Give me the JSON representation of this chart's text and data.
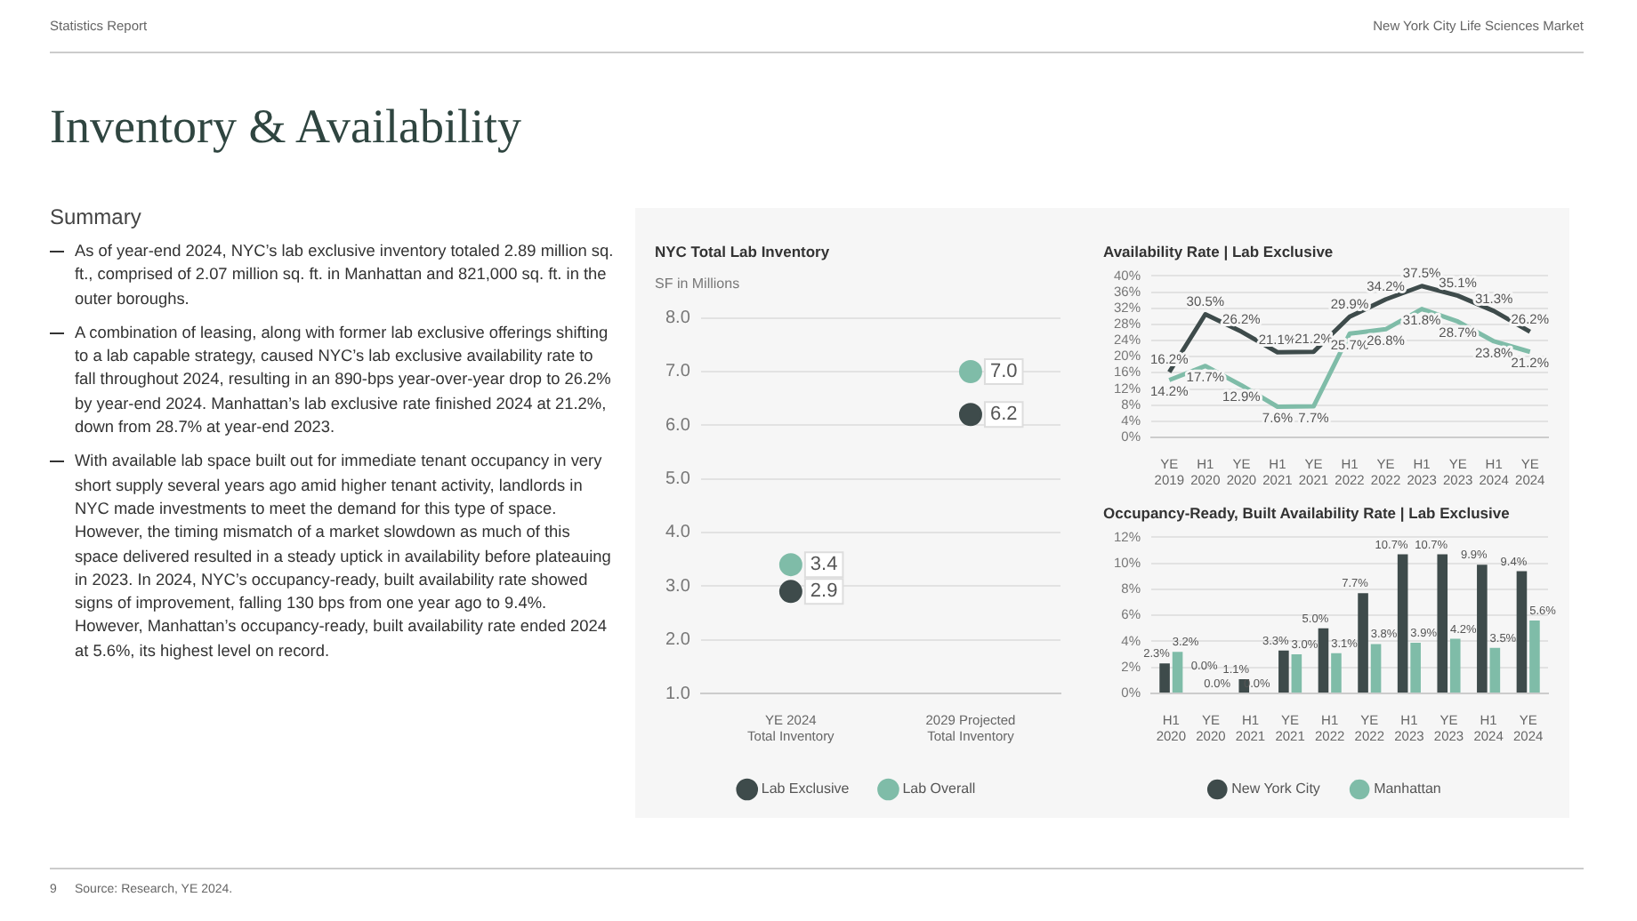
{
  "chart_data": [
    {
      "type": "other",
      "title": "Inventory & Availability",
      "subtitle": "Summary",
      "annotations": [
        "Statistics Report",
        "New York City Life Sciences Market",
        "As of year-end 2024, NYC’s lab exclusive inventory totaled 2.89 million sq. ft., comprised of 2.07 million sq. ft. in Manhattan and 821,000 sq. ft. in the outer boroughs.",
        "A combination of leasing, along with former lab exclusive offerings shifting to a lab capable strategy, caused NYC’s lab exclusive availability rate to fall throughout 2024, resulting in an 890-bps year-over-year drop to 26.2% by year-end 2024. Manhattan’s lab exclusive rate finished 2024 at 21.2%, down from 28.7% at year-end 2023.",
        "With available lab space built out for immediate tenant occupancy in very short supply several years ago amid higher tenant activity, landlords in NYC made investments to meet the demand for this type of space. However, the timing mismatch of a market slowdown as much of this space delivered resulted in a steady uptick in availability before plateauing in 2023. In 2024, NYC’s occupancy-ready, built availability rate showed signs of improvement, falling 130 bps from one year ago to 9.4%. However, Manhattan’s occupancy-ready, built availability rate ended 2024 at 5.6%, its highest level on record.",
        "9",
        "Source: Research, YE 2024."
      ]
    },
    {
      "type": "scatter",
      "title": "NYC Total Lab Inventory",
      "subtitle": "SF in Millions",
      "categories": [
        "YE 2024\nTotal Inventory",
        "2029 Projected\nTotal Inventory"
      ],
      "series": [
        {
          "name": "Lab Exclusive",
          "color": "#3e4b4b",
          "values": [
            2.9,
            6.2
          ],
          "value_labels": [
            "2.9",
            "6.2"
          ]
        },
        {
          "name": "Lab Overall",
          "color": "#7fbca8",
          "values": [
            3.4,
            7.0
          ],
          "value_labels": [
            "3.4",
            "7.0"
          ]
        }
      ],
      "ylim": [
        1,
        8
      ],
      "yticks": [
        {
          "value": 1,
          "label": "1.0"
        },
        {
          "value": 2,
          "label": "2.0"
        },
        {
          "value": 3,
          "label": "3.0"
        },
        {
          "value": 4,
          "label": "4.0"
        },
        {
          "value": 5,
          "label": "5.0"
        },
        {
          "value": 6,
          "label": "6.0"
        },
        {
          "value": 7,
          "label": "7.0"
        },
        {
          "value": 8,
          "label": "8.0"
        }
      ],
      "grid": "y",
      "legend": "bottom",
      "marker": "circle"
    },
    {
      "type": "line",
      "title": "Availability Rate | Lab Exclusive",
      "categories": [
        "YE 2019",
        "H1 2020",
        "YE 2020",
        "H1 2021",
        "YE 2021",
        "H1 2022",
        "YE 2022",
        "H1 2023",
        "YE 2023",
        "H1 2024",
        "YE 2024"
      ],
      "series": [
        {
          "color": "#3e4b4b",
          "values": [
            16.2,
            30.5,
            26.2,
            21.1,
            21.2,
            29.9,
            34.2,
            37.5,
            35.1,
            31.3,
            26.2
          ],
          "value_labels": [
            "16.2%",
            "30.5%",
            "26.2%",
            "21.1%",
            "21.2%",
            "29.9%",
            "34.2%",
            "37.5%",
            "35.1%",
            "31.3%",
            "26.2%"
          ]
        },
        {
          "color": "#7fbca8",
          "values": [
            14.2,
            17.7,
            12.9,
            7.6,
            7.7,
            25.7,
            26.8,
            31.8,
            28.7,
            23.8,
            21.2
          ],
          "value_labels": [
            "14.2%",
            "17.7%",
            "12.9%",
            "7.6%",
            "7.7%",
            "25.7%",
            "26.8%",
            "31.8%",
            "28.7%",
            "23.8%",
            "21.2%"
          ]
        }
      ],
      "ylim": [
        0,
        40
      ],
      "yticks": [
        {
          "value": 0,
          "label": "0%"
        },
        {
          "value": 4,
          "label": "4%"
        },
        {
          "value": 8,
          "label": "8%"
        },
        {
          "value": 12,
          "label": "12%"
        },
        {
          "value": 16,
          "label": "16%"
        },
        {
          "value": 20,
          "label": "20%"
        },
        {
          "value": 24,
          "label": "24%"
        },
        {
          "value": 28,
          "label": "28%"
        },
        {
          "value": 32,
          "label": "32%"
        },
        {
          "value": 36,
          "label": "36%"
        },
        {
          "value": 40,
          "label": "40%"
        }
      ],
      "grid": "y",
      "marker": "none",
      "line_style": "solid"
    },
    {
      "type": "bar",
      "title": "Occupancy-Ready, Built Availability Rate | Lab Exclusive",
      "categories": [
        "H1 2020",
        "YE 2020",
        "H1 2021",
        "YE 2021",
        "H1 2022",
        "YE 2022",
        "H1 2023",
        "YE 2023",
        "H1 2024",
        "YE 2024"
      ],
      "series": [
        {
          "name": "New York City",
          "color": "#3e4b4b",
          "values": [
            2.3,
            0.0,
            1.1,
            3.3,
            5.0,
            7.7,
            10.7,
            10.7,
            9.9,
            9.4
          ],
          "value_labels": [
            "2.3%",
            "0.0%",
            "1.1%",
            "3.3%",
            "5.0%",
            "7.7%",
            "10.7%",
            "10.7%",
            "9.9%",
            "9.4%"
          ]
        },
        {
          "name": "Manhattan",
          "color": "#7fbca8",
          "values": [
            3.2,
            0.0,
            0.0,
            3.0,
            3.1,
            3.8,
            3.9,
            4.2,
            3.5,
            5.6
          ],
          "value_labels": [
            "3.2%",
            "0.0%",
            "0.0%",
            "3.0%",
            "3.1%",
            "3.8%",
            "3.9%",
            "4.2%",
            "3.5%",
            "5.6%"
          ]
        }
      ],
      "ylim": [
        0,
        12
      ],
      "yticks": [
        {
          "value": 0,
          "label": "0%"
        },
        {
          "value": 2,
          "label": "2%"
        },
        {
          "value": 4,
          "label": "4%"
        },
        {
          "value": 6,
          "label": "6%"
        },
        {
          "value": 8,
          "label": "8%"
        },
        {
          "value": 10,
          "label": "10%"
        },
        {
          "value": 12,
          "label": "12%"
        }
      ],
      "grid": "y",
      "legend": "bottom"
    }
  ]
}
